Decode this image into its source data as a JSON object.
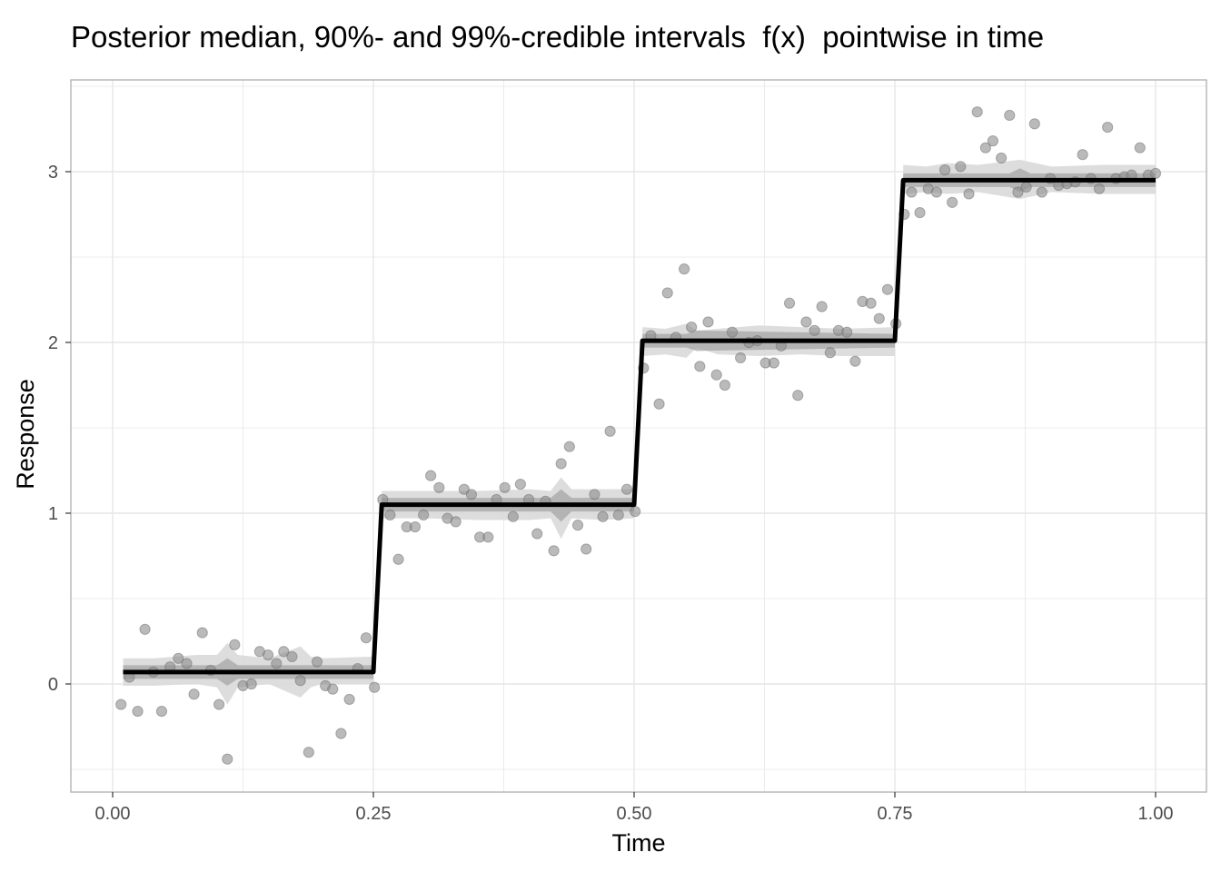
{
  "chart_data": {
    "type": "line",
    "title": "Posterior median, 90%- and 99%-credible intervals  f(x)  pointwise in time",
    "xlabel": "Time",
    "ylabel": "Response",
    "xlim": [
      -0.04,
      1.05
    ],
    "ylim": [
      -0.63,
      3.5
    ],
    "x_ticks": [
      0.0,
      0.25,
      0.5,
      0.75,
      1.0
    ],
    "x_tick_labels": [
      "0.00",
      "0.25",
      "0.50",
      "0.75",
      "1.00"
    ],
    "y_ticks": [
      0,
      1,
      2,
      3
    ],
    "y_tick_labels": [
      "0",
      "1",
      "2",
      "3"
    ],
    "grid": true,
    "colors": {
      "median_line": "#000000",
      "ci99_band": "#d9d9d9",
      "ci90_band": "#a6a6a6",
      "points": "#8c8c8c",
      "grid": "#e6e6e6",
      "panel_border": "#b3b3b3"
    },
    "median": {
      "x": [
        0.01,
        0.25,
        0.258,
        0.5,
        0.508,
        0.75,
        0.758,
        1.0
      ],
      "y": [
        0.07,
        0.07,
        1.05,
        1.05,
        2.01,
        2.01,
        2.95,
        2.95
      ]
    },
    "ci99": {
      "x": [
        0.01,
        0.04,
        0.08,
        0.1,
        0.11,
        0.12,
        0.15,
        0.18,
        0.19,
        0.2,
        0.25,
        0.258,
        0.3,
        0.35,
        0.4,
        0.42,
        0.43,
        0.44,
        0.47,
        0.5,
        0.508,
        0.53,
        0.55,
        0.56,
        0.58,
        0.62,
        0.66,
        0.7,
        0.75,
        0.758,
        0.78,
        0.8,
        0.83,
        0.87,
        0.9,
        0.95,
        1.0
      ],
      "lower": [
        -0.01,
        -0.01,
        0.0,
        -0.02,
        -0.12,
        -0.02,
        0.0,
        -0.08,
        -0.02,
        0.0,
        0.0,
        0.97,
        0.97,
        0.96,
        0.96,
        0.97,
        0.85,
        0.97,
        0.96,
        0.97,
        1.92,
        1.93,
        1.91,
        1.97,
        1.93,
        1.92,
        1.93,
        1.92,
        1.92,
        2.87,
        2.88,
        2.87,
        2.88,
        2.84,
        2.88,
        2.87,
        2.87
      ],
      "upper": [
        0.15,
        0.15,
        0.17,
        0.17,
        0.24,
        0.17,
        0.15,
        0.22,
        0.16,
        0.15,
        0.16,
        1.13,
        1.13,
        1.13,
        1.14,
        1.13,
        1.21,
        1.14,
        1.14,
        1.14,
        2.09,
        2.08,
        2.11,
        2.07,
        2.08,
        2.1,
        2.09,
        2.08,
        2.09,
        3.04,
        3.03,
        3.05,
        3.04,
        3.07,
        3.03,
        3.04,
        3.04
      ]
    },
    "ci90": {
      "x": [
        0.01,
        0.1,
        0.11,
        0.12,
        0.25,
        0.258,
        0.42,
        0.43,
        0.44,
        0.5,
        0.508,
        0.55,
        0.56,
        0.75,
        0.758,
        0.86,
        0.87,
        0.88,
        1.0
      ],
      "lower": [
        0.03,
        0.03,
        -0.01,
        0.03,
        0.03,
        1.01,
        1.01,
        0.95,
        1.01,
        1.01,
        1.97,
        1.97,
        1.95,
        1.97,
        2.91,
        2.91,
        2.88,
        2.91,
        2.91
      ],
      "upper": [
        0.11,
        0.11,
        0.15,
        0.11,
        0.11,
        1.09,
        1.09,
        1.14,
        1.09,
        1.09,
        2.05,
        2.05,
        2.07,
        2.05,
        2.99,
        2.99,
        3.02,
        2.99,
        2.99
      ]
    },
    "points": {
      "x": [
        0.008,
        0.016,
        0.024,
        0.031,
        0.039,
        0.047,
        0.055,
        0.063,
        0.071,
        0.078,
        0.086,
        0.094,
        0.102,
        0.11,
        0.117,
        0.125,
        0.133,
        0.141,
        0.149,
        0.157,
        0.164,
        0.172,
        0.18,
        0.188,
        0.196,
        0.204,
        0.211,
        0.219,
        0.227,
        0.235,
        0.243,
        0.251,
        0.259,
        0.266,
        0.274,
        0.282,
        0.29,
        0.298,
        0.305,
        0.313,
        0.321,
        0.329,
        0.337,
        0.344,
        0.352,
        0.36,
        0.368,
        0.376,
        0.384,
        0.391,
        0.399,
        0.407,
        0.415,
        0.423,
        0.43,
        0.438,
        0.446,
        0.454,
        0.462,
        0.47,
        0.477,
        0.485,
        0.493,
        0.501,
        0.509,
        0.516,
        0.524,
        0.532,
        0.54,
        0.548,
        0.555,
        0.563,
        0.571,
        0.579,
        0.587,
        0.594,
        0.602,
        0.61,
        0.618,
        0.626,
        0.634,
        0.641,
        0.649,
        0.657,
        0.665,
        0.673,
        0.68,
        0.688,
        0.696,
        0.704,
        0.712,
        0.719,
        0.727,
        0.735,
        0.743,
        0.751,
        0.759,
        0.766,
        0.774,
        0.782,
        0.79,
        0.798,
        0.805,
        0.813,
        0.821,
        0.829,
        0.837,
        0.844,
        0.852,
        0.86,
        0.868,
        0.876,
        0.884,
        0.891,
        0.899,
        0.907,
        0.915,
        0.923,
        0.93,
        0.938,
        0.946,
        0.954,
        0.962,
        0.97,
        0.977,
        0.985,
        0.993,
        1.0
      ],
      "y": [
        -0.12,
        0.04,
        -0.16,
        0.32,
        0.07,
        -0.16,
        0.1,
        0.15,
        0.12,
        -0.06,
        0.3,
        0.08,
        -0.12,
        -0.44,
        0.23,
        -0.01,
        0.0,
        0.19,
        0.17,
        0.12,
        0.19,
        0.16,
        0.02,
        -0.4,
        0.13,
        -0.01,
        -0.03,
        -0.29,
        -0.09,
        0.09,
        0.27,
        -0.02,
        1.08,
        0.99,
        0.73,
        0.92,
        0.92,
        0.99,
        1.22,
        1.15,
        0.97,
        0.95,
        1.14,
        1.11,
        0.86,
        0.86,
        1.08,
        1.15,
        0.98,
        1.17,
        1.08,
        0.88,
        1.07,
        0.78,
        1.29,
        1.39,
        0.93,
        0.79,
        1.11,
        0.98,
        1.48,
        0.99,
        1.14,
        1.01,
        1.85,
        2.04,
        1.64,
        2.29,
        2.03,
        2.43,
        2.09,
        1.86,
        2.12,
        1.81,
        1.75,
        2.06,
        1.91,
        2.0,
        2.01,
        1.88,
        1.88,
        1.98,
        2.23,
        1.69,
        2.12,
        2.07,
        2.21,
        1.94,
        2.07,
        2.06,
        1.89,
        2.24,
        2.23,
        2.14,
        2.31,
        2.11,
        2.75,
        2.88,
        2.76,
        2.9,
        2.88,
        3.01,
        2.82,
        3.03,
        2.87,
        3.35,
        3.14,
        3.18,
        3.08,
        3.33,
        2.88,
        2.91,
        3.28,
        2.88,
        2.96,
        2.92,
        2.93,
        2.94,
        3.1,
        2.96,
        2.9,
        3.26,
        2.96,
        2.97,
        2.98,
        3.14,
        2.98,
        2.99
      ]
    }
  }
}
